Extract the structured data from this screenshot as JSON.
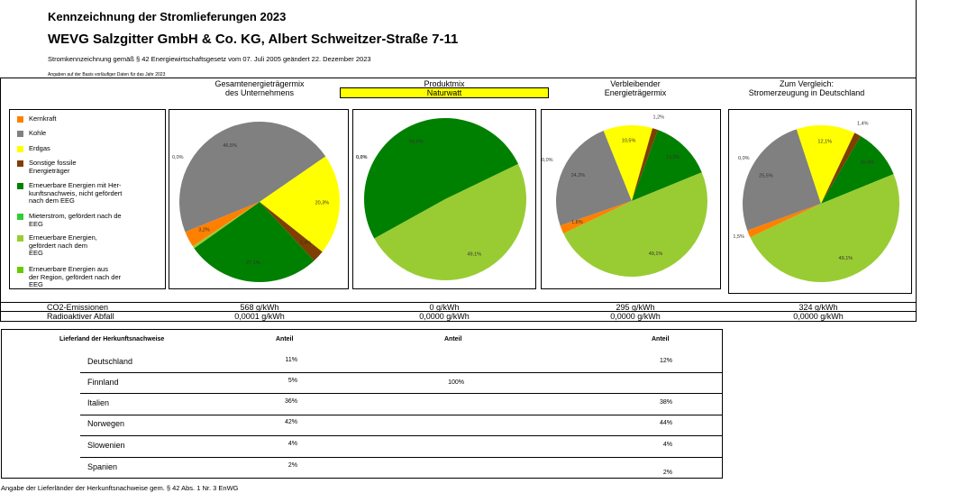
{
  "header": {
    "title": "Kennzeichnung der Stromlieferungen 2023",
    "company": "WEVG Salzgitter GmbH & Co. KG, Albert Schweitzer-Straße 7-11",
    "subtitle": "Stromkennzeichnung gemäß § 42 Energiewirtschaftsgesetz vom 07. Juli 2005 geändert 22. Dezember 2023",
    "note": "Angaben auf der Basis vorläufiger Daten für das Jahr 2023"
  },
  "columns": {
    "col1": [
      "Gesamtenergieträgermix",
      "des Unternehmens"
    ],
    "col2": [
      "Produktmix"
    ],
    "col2_product": "Naturwatt",
    "col3": [
      "Verbleibender",
      "Energieträgermix"
    ],
    "col4": [
      "Zum Vergleich:",
      "Stromerzeugung in Deutschland"
    ]
  },
  "colors": {
    "Kernkraft": "#ff8000",
    "Kohle": "#808080",
    "Erdgas": "#ffff00",
    "Sonstige": "#7f3f00",
    "EE_nicht_EEG": "#008000",
    "Mieterstrom": "#33cc33",
    "EE_EEG": "#99cc33",
    "EE_Region": "#66cc00"
  },
  "legend": [
    {
      "key": "Kernkraft",
      "lines": [
        "Kernkraft"
      ]
    },
    {
      "key": "Kohle",
      "lines": [
        "Kohle"
      ]
    },
    {
      "key": "Erdgas",
      "lines": [
        "Erdgas"
      ]
    },
    {
      "key": "Sonstige",
      "lines": [
        "Sonstige fossile",
        "Energieträger"
      ]
    },
    {
      "key": "EE_nicht_EEG",
      "lines": [
        "Erneuerbare Energien mit Her-",
        "kunftsnachweis, nicht gefördert",
        "nach dem EEG"
      ]
    },
    {
      "key": "Mieterstrom",
      "lines": [
        "Mieterstrom, gefördert nach de",
        "EEG"
      ]
    },
    {
      "key": "EE_EEG",
      "lines": [
        "Erneuerbare Energien,",
        "gefördert nach dem",
        "EEG"
      ]
    },
    {
      "key": "EE_Region",
      "lines": [
        "Erneuerbare Energien aus",
        "der Region, gefördert nach der",
        "EEG"
      ]
    }
  ],
  "chart_data": [
    {
      "type": "pie",
      "title": "Gesamtenergieträgermix des Unternehmens",
      "slices": [
        {
          "key": "Kohle",
          "value": 46.5,
          "label": "46,5%"
        },
        {
          "key": "Erdgas",
          "value": 20.3,
          "label": "20,3%"
        },
        {
          "key": "Sonstige",
          "value": 2.4,
          "label": "2,4%"
        },
        {
          "key": "EE_nicht_EEG",
          "value": 27.1,
          "label": "27,1%"
        },
        {
          "key": "EE_EEG",
          "value": 0.5,
          "label": ""
        },
        {
          "key": "Kernkraft",
          "value": 3.2,
          "label": "3,2%"
        }
      ],
      "extra_labels": [
        "0,0%"
      ]
    },
    {
      "type": "pie",
      "title": "Produktmix Naturwatt",
      "slices": [
        {
          "key": "EE_nicht_EEG",
          "value": 50.9,
          "label": "50,9%"
        },
        {
          "key": "EE_EEG",
          "value": 49.1,
          "label": "49,1%"
        }
      ],
      "extra_labels": [
        "0,0%"
      ]
    },
    {
      "type": "pie",
      "title": "Verbleibender Energieträgermix",
      "slices": [
        {
          "key": "Kohle",
          "value": 24.2,
          "label": "24,2%"
        },
        {
          "key": "Erdgas",
          "value": 10.5,
          "label": "10,5%"
        },
        {
          "key": "Sonstige",
          "value": 1.2,
          "label": "1,2%"
        },
        {
          "key": "EE_nicht_EEG",
          "value": 13.2,
          "label": "13,2%"
        },
        {
          "key": "EE_EEG",
          "value": 49.1,
          "label": "49,1%"
        },
        {
          "key": "Kernkraft",
          "value": 1.8,
          "label": "1,8%"
        }
      ],
      "extra_labels": [
        "0,0%"
      ]
    },
    {
      "type": "pie",
      "title": "Zum Vergleich: Stromerzeugung in Deutschland",
      "slices": [
        {
          "key": "Kohle",
          "value": 25.5,
          "label": "25,5%"
        },
        {
          "key": "Erdgas",
          "value": 12.1,
          "label": "12,1%"
        },
        {
          "key": "Sonstige",
          "value": 1.4,
          "label": "1,4%"
        },
        {
          "key": "EE_nicht_EEG",
          "value": 10.4,
          "label": "10,4%"
        },
        {
          "key": "EE_EEG",
          "value": 49.1,
          "label": "49,1%"
        },
        {
          "key": "Kernkraft",
          "value": 1.5,
          "label": "1,5%"
        }
      ],
      "extra_labels": [
        "0,0%"
      ]
    }
  ],
  "emissions": {
    "co2_label": "CO2-Emissionen",
    "radio_label": "Radioaktiver Abfall",
    "co2": [
      "568 g/kWh",
      "0 g/kWh",
      "295 g/kWh",
      "324 g/kWh"
    ],
    "radio": [
      "0,0001 g/kWh",
      "0,0000 g/kWh",
      "0,0000 g/kWh",
      "0,0000 g/kWh"
    ]
  },
  "origin_table": {
    "headers": [
      "Lieferland der Herkunftsnachweise",
      "Anteil",
      "Anteil",
      "Anteil"
    ],
    "rows": [
      {
        "country": "Deutschland",
        "a": "11%",
        "b": "",
        "c": "12%"
      },
      {
        "country": "Finnland",
        "a": "5%",
        "b": "100%",
        "c": ""
      },
      {
        "country": "Italien",
        "a": "36%",
        "b": "",
        "c": "38%"
      },
      {
        "country": "Norwegen",
        "a": "42%",
        "b": "",
        "c": "44%"
      },
      {
        "country": "Slowenien",
        "a": "4%",
        "b": "",
        "c": "4%"
      },
      {
        "country": "Spanien",
        "a": "2%",
        "b": "",
        "c": "2%"
      }
    ],
    "footer": "Angabe der Lieferländer der Herkunftsnachweise gem. § 42 Abs. 1 Nr. 3 EnWG"
  }
}
